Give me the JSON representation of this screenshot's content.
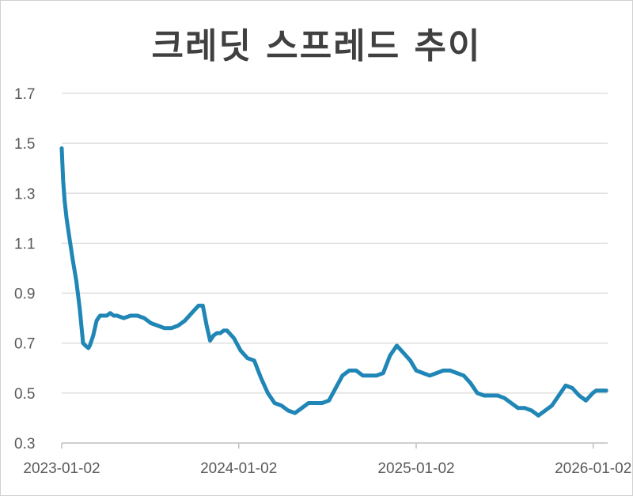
{
  "chart_data": {
    "type": "line",
    "title": "크레딧 스프레드 추이",
    "xlabel": "",
    "ylabel": "",
    "xlim": [
      "2023-01-02",
      "2026-01-31"
    ],
    "ylim": [
      0.3,
      1.7
    ],
    "y_ticks": [
      "0.3",
      "0.5",
      "0.7",
      "0.9",
      "1.1",
      "1.3",
      "1.5",
      "1.7"
    ],
    "x_ticks": [
      "2023-01-02",
      "2024-01-02",
      "2025-01-02",
      "2026-01-02"
    ],
    "grid": "horizontal",
    "legend": "none",
    "line_color": "#1f86b5",
    "series": [
      {
        "x": [
          "2023-01-02",
          "2023-01-05",
          "2023-01-08",
          "2023-01-12",
          "2023-01-18",
          "2023-01-25",
          "2023-02-01",
          "2023-02-08",
          "2023-02-15",
          "2023-02-20",
          "2023-02-26",
          "2023-03-01",
          "2023-03-08",
          "2023-03-15",
          "2023-03-22",
          "2023-03-29",
          "2023-04-05",
          "2023-04-12",
          "2023-04-19",
          "2023-04-26",
          "2023-05-10",
          "2023-05-24",
          "2023-06-07",
          "2023-06-21",
          "2023-07-05",
          "2023-07-19",
          "2023-08-02",
          "2023-08-16",
          "2023-08-30",
          "2023-09-13",
          "2023-09-27",
          "2023-10-11",
          "2023-10-20",
          "2023-10-28",
          "2023-11-04",
          "2023-11-11",
          "2023-11-18",
          "2023-11-25",
          "2023-12-02",
          "2023-12-09",
          "2023-12-23",
          "2024-01-06",
          "2024-01-20",
          "2024-02-03",
          "2024-02-17",
          "2024-03-02",
          "2024-03-16",
          "2024-03-30",
          "2024-04-13",
          "2024-04-27",
          "2024-05-11",
          "2024-05-25",
          "2024-06-08",
          "2024-06-22",
          "2024-07-06",
          "2024-07-20",
          "2024-08-03",
          "2024-08-17",
          "2024-08-31",
          "2024-09-14",
          "2024-09-28",
          "2024-10-12",
          "2024-10-26",
          "2024-11-09",
          "2024-11-23",
          "2024-12-07",
          "2024-12-21",
          "2025-01-02",
          "2025-01-16",
          "2025-01-30",
          "2025-02-13",
          "2025-02-27",
          "2025-03-13",
          "2025-03-27",
          "2025-04-10",
          "2025-04-24",
          "2025-05-08",
          "2025-05-22",
          "2025-06-05",
          "2025-06-19",
          "2025-07-03",
          "2025-07-17",
          "2025-07-31",
          "2025-08-14",
          "2025-08-28",
          "2025-09-11",
          "2025-09-25",
          "2025-10-09",
          "2025-10-23",
          "2025-11-06",
          "2025-11-20",
          "2025-12-04",
          "2025-12-18",
          "2026-01-01",
          "2026-01-08",
          "2026-01-15",
          "2026-01-22",
          "2026-01-29"
        ],
        "values": [
          1.48,
          1.35,
          1.27,
          1.2,
          1.12,
          1.03,
          0.95,
          0.84,
          0.7,
          0.69,
          0.68,
          0.69,
          0.73,
          0.79,
          0.81,
          0.81,
          0.81,
          0.82,
          0.81,
          0.81,
          0.8,
          0.81,
          0.81,
          0.8,
          0.78,
          0.77,
          0.76,
          0.76,
          0.77,
          0.79,
          0.82,
          0.85,
          0.85,
          0.77,
          0.71,
          0.73,
          0.74,
          0.74,
          0.75,
          0.75,
          0.72,
          0.67,
          0.64,
          0.63,
          0.56,
          0.5,
          0.46,
          0.45,
          0.43,
          0.42,
          0.44,
          0.46,
          0.46,
          0.46,
          0.47,
          0.52,
          0.57,
          0.59,
          0.59,
          0.57,
          0.57,
          0.57,
          0.58,
          0.65,
          0.69,
          0.66,
          0.63,
          0.59,
          0.58,
          0.57,
          0.58,
          0.59,
          0.59,
          0.58,
          0.57,
          0.54,
          0.5,
          0.49,
          0.49,
          0.49,
          0.48,
          0.46,
          0.44,
          0.44,
          0.43,
          0.41,
          0.43,
          0.45,
          0.49,
          0.53,
          0.52,
          0.49,
          0.47,
          0.5,
          0.51,
          0.51,
          0.51,
          0.51
        ]
      }
    ]
  }
}
